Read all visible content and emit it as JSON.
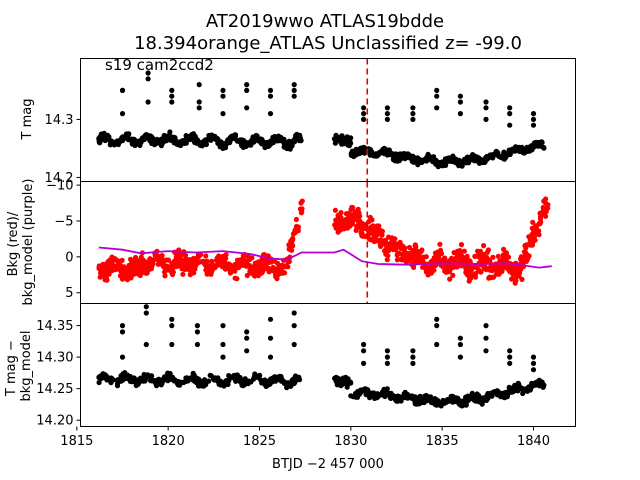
{
  "chart_data": {
    "type": "scatter",
    "title": "AT2019wwo  ATLAS19bdde",
    "subtitle": "18.394orange_ATLAS Unclassified z= -99.0",
    "xlabel": "BTJD −2 457 000",
    "x_range": [
      1815.2,
      1842.3
    ],
    "x_ticks": [
      1815,
      1820,
      1825,
      1830,
      1835,
      1840
    ],
    "x_tick_labels": [
      "1815",
      "1820",
      "1825",
      "1830",
      "1835",
      "1840"
    ],
    "panels": [
      {
        "id": "top",
        "ylabel": "T mag",
        "inverted_y": true,
        "y_range": [
          14.405,
          14.193
        ],
        "y_ticks": [
          14.2,
          14.3
        ],
        "y_tick_labels": [
          "14.2",
          "14.3"
        ],
        "annotation": "s19 cam2ccd2",
        "vline_x": 1830.9,
        "vline_color": "#e00000",
        "series": [
          {
            "color": "#000000",
            "segments": [
              {
                "x0": 1816.2,
                "x1": 1827.3,
                "y0": 14.265,
                "y1": 14.262,
                "wiggle": 0.006,
                "amp": 0.0,
                "scatter": 0.007,
                "n": 420
              },
              {
                "x0": 1829.1,
                "x1": 1830.0,
                "y0": 14.265,
                "y1": 14.262,
                "wiggle": 0.0,
                "amp": 0.0,
                "scatter": 0.008,
                "n": 45
              },
              {
                "x0": 1830.0,
                "x1": 1840.6,
                "y0": 14.232,
                "y1": 14.245,
                "wiggle": 0.004,
                "amp": 0.012,
                "scatter": 0.006,
                "n": 420
              }
            ],
            "dips": [
              {
                "x": 1817.5,
                "y": [
                  14.31,
                  14.35,
                  14.35
                ]
              },
              {
                "x": 1818.9,
                "y": [
                  14.33,
                  14.37,
                  14.38
                ]
              },
              {
                "x": 1820.2,
                "y": [
                  14.33,
                  14.34,
                  14.35
                ]
              },
              {
                "x": 1821.7,
                "y": [
                  14.32,
                  14.33,
                  14.36
                ]
              },
              {
                "x": 1823.0,
                "y": [
                  14.31,
                  14.34,
                  14.35
                ]
              },
              {
                "x": 1824.3,
                "y": [
                  14.32,
                  14.35,
                  14.36
                ]
              },
              {
                "x": 1825.6,
                "y": [
                  14.31,
                  14.34,
                  14.35
                ]
              },
              {
                "x": 1826.9,
                "y": [
                  14.34,
                  14.35,
                  14.36
                ]
              },
              {
                "x": 1830.7,
                "y": [
                  14.3,
                  14.31,
                  14.32
                ]
              },
              {
                "x": 1832.0,
                "y": [
                  14.3,
                  14.31,
                  14.32
                ]
              },
              {
                "x": 1833.4,
                "y": [
                  14.3,
                  14.31,
                  14.32
                ]
              },
              {
                "x": 1834.7,
                "y": [
                  14.32,
                  14.34,
                  14.35
                ]
              },
              {
                "x": 1836.0,
                "y": [
                  14.31,
                  14.33,
                  14.34
                ]
              },
              {
                "x": 1837.4,
                "y": [
                  14.3,
                  14.32,
                  14.33
                ]
              },
              {
                "x": 1838.7,
                "y": [
                  14.29,
                  14.31,
                  14.32
                ]
              },
              {
                "x": 1840.0,
                "y": [
                  14.29,
                  14.3,
                  14.31
                ]
              }
            ]
          }
        ]
      },
      {
        "id": "middle",
        "ylabel": "Bkg (red)/ bkg_model (purple)",
        "ylabel_lines": [
          "Bkg (red)/",
          "bkg_model (purple)"
        ],
        "inverted_y": false,
        "y_range": [
          -10.5,
          6.5
        ],
        "y_ticks": [
          5,
          0,
          -5,
          -10
        ],
        "y_tick_labels": [
          "5",
          "0",
          "−5",
          "−10"
        ],
        "vline_x": 1830.9,
        "vline_color": "#e00000",
        "series": [
          {
            "name": "Bkg",
            "color": "#ff0000",
            "segments": [
              {
                "x0": 1816.2,
                "x1": 1818.5,
                "y0": 1.5,
                "y1": 1.8,
                "wiggle": 0.5,
                "amp": 0.0,
                "scatter": 1.5,
                "n": 150
              },
              {
                "x0": 1818.5,
                "x1": 1826.5,
                "y0": 0.8,
                "y1": 1.5,
                "wiggle": 0.5,
                "amp": 0.0,
                "scatter": 1.3,
                "n": 380
              },
              {
                "x0": 1826.5,
                "x1": 1827.4,
                "y0": 0.5,
                "y1": -7.5,
                "wiggle": 0.0,
                "amp": 0.0,
                "scatter": 1.5,
                "n": 40
              },
              {
                "x0": 1829.1,
                "x1": 1830.5,
                "y0": -5.0,
                "y1": -5.5,
                "wiggle": 0.5,
                "amp": 0.0,
                "scatter": 1.8,
                "n": 80
              },
              {
                "x0": 1830.5,
                "x1": 1833.5,
                "y0": -4.5,
                "y1": 0.5,
                "wiggle": 0.5,
                "amp": 0.0,
                "scatter": 1.5,
                "n": 150
              },
              {
                "x0": 1833.5,
                "x1": 1839.5,
                "y0": 0.5,
                "y1": 1.5,
                "wiggle": 0.8,
                "amp": 0.0,
                "scatter": 1.8,
                "n": 300
              },
              {
                "x0": 1839.5,
                "x1": 1840.8,
                "y0": 0.0,
                "y1": -7.5,
                "wiggle": 0.0,
                "amp": 0.0,
                "scatter": 1.8,
                "n": 60
              }
            ]
          },
          {
            "name": "bkg_model",
            "color": "#b400d4",
            "line": [
              [
                1816.2,
                -1.3
              ],
              [
                1817.5,
                -1.0
              ],
              [
                1818.5,
                -0.5
              ],
              [
                1820.0,
                -0.8
              ],
              [
                1821.5,
                -0.6
              ],
              [
                1823.0,
                -0.8
              ],
              [
                1824.5,
                -0.4
              ],
              [
                1825.5,
                0.2
              ],
              [
                1826.5,
                0.4
              ],
              [
                1827.3,
                -0.6
              ],
              [
                1829.1,
                -0.6
              ],
              [
                1829.6,
                -1.0
              ],
              [
                1830.1,
                -0.2
              ],
              [
                1830.6,
                0.6
              ],
              [
                1831.5,
                1.0
              ],
              [
                1833.0,
                1.1
              ],
              [
                1835.0,
                0.9
              ],
              [
                1837.0,
                1.0
              ],
              [
                1838.5,
                0.9
              ],
              [
                1839.5,
                1.2
              ],
              [
                1840.3,
                1.5
              ],
              [
                1841.0,
                1.3
              ]
            ]
          }
        ]
      },
      {
        "id": "bottom",
        "ylabel": "T mag − bkg_model",
        "ylabel_lines": [
          "T mag −",
          "bkg_model"
        ],
        "inverted_y": true,
        "y_range": [
          14.385,
          14.19
        ],
        "y_ticks": [
          14.2,
          14.25,
          14.3,
          14.35
        ],
        "y_tick_labels": [
          "14.20",
          "14.25",
          "14.30",
          "14.35"
        ],
        "series": [
          {
            "color": "#000000",
            "segments": [
              {
                "x0": 1816.2,
                "x1": 1827.3,
                "y0": 14.265,
                "y1": 14.262,
                "wiggle": 0.005,
                "amp": 0.0,
                "scatter": 0.006,
                "n": 420
              },
              {
                "x0": 1829.1,
                "x1": 1830.0,
                "y0": 14.262,
                "y1": 14.26,
                "wiggle": 0.0,
                "amp": 0.0,
                "scatter": 0.008,
                "n": 45
              },
              {
                "x0": 1830.0,
                "x1": 1840.6,
                "y0": 14.232,
                "y1": 14.248,
                "wiggle": 0.004,
                "amp": 0.01,
                "scatter": 0.006,
                "n": 420
              }
            ],
            "dips": [
              {
                "x": 1817.5,
                "y": [
                  14.3,
                  14.34,
                  14.35
                ]
              },
              {
                "x": 1818.8,
                "y": [
                  14.32,
                  14.37,
                  14.38
                ]
              },
              {
                "x": 1820.2,
                "y": [
                  14.32,
                  14.35,
                  14.36
                ]
              },
              {
                "x": 1821.6,
                "y": [
                  14.32,
                  14.34,
                  14.35
                ]
              },
              {
                "x": 1823.0,
                "y": [
                  14.3,
                  14.32,
                  14.35
                ]
              },
              {
                "x": 1824.3,
                "y": [
                  14.31,
                  14.33,
                  14.34
                ]
              },
              {
                "x": 1825.6,
                "y": [
                  14.3,
                  14.33,
                  14.36
                ]
              },
              {
                "x": 1826.9,
                "y": [
                  14.32,
                  14.35,
                  14.37
                ]
              },
              {
                "x": 1830.7,
                "y": [
                  14.29,
                  14.31,
                  14.32
                ]
              },
              {
                "x": 1832.0,
                "y": [
                  14.29,
                  14.3,
                  14.31
                ]
              },
              {
                "x": 1833.4,
                "y": [
                  14.29,
                  14.3,
                  14.31
                ]
              },
              {
                "x": 1834.7,
                "y": [
                  14.32,
                  14.35,
                  14.36
                ]
              },
              {
                "x": 1836.0,
                "y": [
                  14.3,
                  14.32,
                  14.33
                ]
              },
              {
                "x": 1837.4,
                "y": [
                  14.31,
                  14.33,
                  14.35
                ]
              },
              {
                "x": 1838.7,
                "y": [
                  14.29,
                  14.3,
                  14.31
                ]
              },
              {
                "x": 1840.0,
                "y": [
                  14.28,
                  14.29,
                  14.3
                ]
              }
            ]
          }
        ]
      }
    ]
  }
}
